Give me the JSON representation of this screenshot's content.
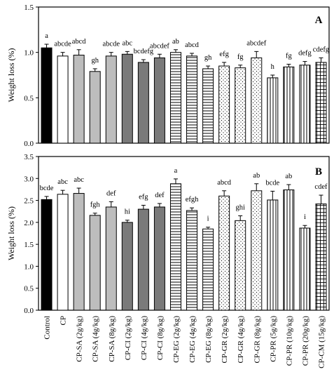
{
  "chart_data": [
    {
      "type": "bar",
      "panel": "A",
      "ylabel": "Weight loss (%)",
      "ylim": [
        0,
        1.5
      ],
      "yticks": [
        "0.0",
        "0.5",
        "1.0",
        "1.5"
      ],
      "categories": [
        "Control",
        "CP",
        "CP-SA (2g/kg)",
        "CP-SA (4g/kg)",
        "CP-SA (8g/kg)",
        "CP-CI (2g/kg)",
        "CP-CI (4g/kg)",
        "CP-CI (8g/kg)",
        "CP-EG (2g/kg)",
        "CP-EG (4g/kg)",
        "CP-EG (8g/kg)",
        "CP-GR (2g/kg)",
        "CP-GR (4g/kg)",
        "CP-GR (8g/kg)",
        "CP-PR (5g/kg)",
        "CP-PR (10g/kg)",
        "CP-PR (20g/kg)",
        "CP-CM (15g/kg)"
      ],
      "values": [
        1.05,
        0.96,
        0.97,
        0.79,
        0.96,
        0.98,
        0.89,
        0.94,
        1.0,
        0.96,
        0.82,
        0.85,
        0.83,
        0.94,
        0.72,
        0.84,
        0.86,
        0.89
      ],
      "errors": [
        0.04,
        0.04,
        0.06,
        0.03,
        0.04,
        0.03,
        0.03,
        0.04,
        0.03,
        0.03,
        0.03,
        0.04,
        0.03,
        0.07,
        0.03,
        0.03,
        0.04,
        0.05
      ],
      "significance": [
        "a",
        "abcde",
        "abcd",
        "gh",
        "abcde",
        "abc",
        "bcdefg",
        "abcdef",
        "ab",
        "abcd",
        "gh",
        "efg",
        "fg",
        "abcdef",
        "h",
        "fg",
        "defg",
        "cdefg"
      ]
    },
    {
      "type": "bar",
      "panel": "B",
      "ylabel": "Weight loss (%)",
      "ylim": [
        0,
        3.5
      ],
      "yticks": [
        "0.0",
        "0.5",
        "1.0",
        "1.5",
        "2.0",
        "2.5",
        "3.0",
        "3.5"
      ],
      "categories": [
        "Control",
        "CP",
        "CP-SA (2g/kg)",
        "CP-SA (4g/kg)",
        "CP-SA (8g/kg)",
        "CP-CI (2g/kg)",
        "CP-CI (4g/kg)",
        "CP-CI (8g/kg)",
        "CP-EG (2g/kg)",
        "CP-EG (4g/kg)",
        "CP-EG (8g/kg)",
        "CP-GR (2g/kg)",
        "CP-GR (4g/kg)",
        "CP-GR (8g/kg)",
        "CP-PR (5g/kg)",
        "CP-PR (10g/kg)",
        "CP-PR (20g/kg)",
        "CP-CM (15g/kg)"
      ],
      "values": [
        2.52,
        2.64,
        2.66,
        2.16,
        2.35,
        2.0,
        2.3,
        2.35,
        2.88,
        2.27,
        1.85,
        2.6,
        2.04,
        2.72,
        2.51,
        2.74,
        1.87,
        2.42
      ],
      "errors": [
        0.07,
        0.09,
        0.12,
        0.05,
        0.12,
        0.05,
        0.09,
        0.08,
        0.11,
        0.06,
        0.04,
        0.12,
        0.11,
        0.16,
        0.2,
        0.12,
        0.06,
        0.2
      ],
      "significance": [
        "bcde",
        "abc",
        "abc",
        "fgh",
        "def",
        "hi",
        "efg",
        "def",
        "a",
        "efgh",
        "i",
        "abcd",
        "ghi",
        "ab",
        "bcde",
        "ab",
        "i",
        "cdef"
      ]
    }
  ],
  "styles": [
    "black",
    "white",
    "lightgray",
    "lightgray",
    "lightgray",
    "gray",
    "gray",
    "gray",
    "hlines",
    "hlines",
    "hlines",
    "dots",
    "dots",
    "dots",
    "vlines",
    "vlines",
    "vlines",
    "grid"
  ]
}
